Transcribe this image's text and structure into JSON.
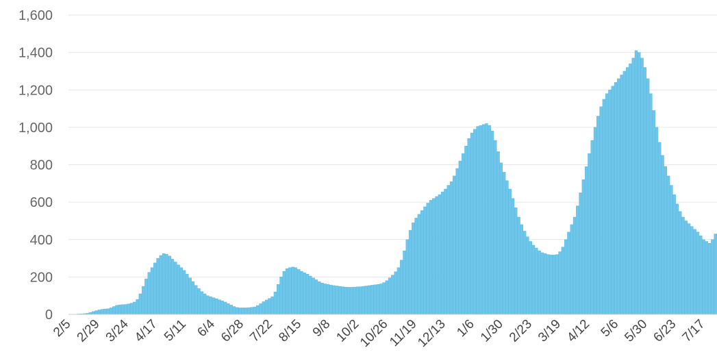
{
  "chart_data": {
    "type": "bar",
    "title": "",
    "xlabel": "",
    "ylabel": "",
    "ylim": [
      0,
      1600
    ],
    "yticks": [
      "0",
      "200",
      "400",
      "600",
      "800",
      "1,000",
      "1,200",
      "1,400",
      "1,600"
    ],
    "xticks": [
      "2/5",
      "2/29",
      "3/24",
      "4/17",
      "5/11",
      "6/4",
      "6/28",
      "7/22",
      "8/15",
      "9/8",
      "10/2",
      "10/26",
      "11/19",
      "12/13",
      "1/6",
      "1/30",
      "2/23",
      "3/19",
      "4/12",
      "5/6",
      "5/30",
      "6/23",
      "7/17"
    ],
    "grid": true,
    "colors": {
      "bar": "#6ec6ea",
      "bar_edge": "#4fb3de",
      "grid": "#e6e6e6"
    },
    "series": [
      {
        "values": [
          0,
          0,
          1,
          2,
          3,
          4,
          6,
          10,
          15,
          20,
          24,
          27,
          29,
          30,
          35,
          42,
          48,
          51,
          52,
          53,
          56,
          60,
          66,
          80,
          110,
          150,
          190,
          225,
          250,
          275,
          300,
          315,
          325,
          322,
          312,
          295,
          280,
          265,
          250,
          235,
          215,
          195,
          175,
          155,
          138,
          122,
          110,
          100,
          94,
          89,
          84,
          78,
          72,
          66,
          58,
          50,
          42,
          37,
          35,
          35,
          35,
          36,
          38,
          40,
          47,
          57,
          68,
          77,
          85,
          95,
          120,
          160,
          200,
          230,
          245,
          250,
          253,
          250,
          240,
          230,
          222,
          215,
          205,
          195,
          185,
          175,
          168,
          163,
          160,
          157,
          154,
          152,
          150,
          148,
          146,
          145,
          145,
          146,
          147,
          148,
          150,
          152,
          154,
          156,
          158,
          160,
          163,
          170,
          180,
          195,
          210,
          228,
          250,
          290,
          340,
          400,
          450,
          490,
          515,
          535,
          555,
          575,
          595,
          610,
          620,
          630,
          640,
          655,
          670,
          690,
          710,
          740,
          780,
          820,
          860,
          900,
          940,
          970,
          990,
          1005,
          1010,
          1015,
          1020,
          1010,
          980,
          930,
          870,
          810,
          760,
          715,
          670,
          620,
          570,
          520,
          480,
          445,
          415,
          390,
          370,
          355,
          340,
          330,
          325,
          320,
          318,
          318,
          320,
          335,
          360,
          400,
          440,
          480,
          520,
          580,
          650,
          720,
          790,
          860,
          930,
          1000,
          1060,
          1110,
          1150,
          1180,
          1200,
          1220,
          1240,
          1260,
          1280,
          1300,
          1320,
          1340,
          1370,
          1410,
          1400,
          1370,
          1320,
          1260,
          1180,
          1090,
          1000,
          920,
          850,
          790,
          740,
          690,
          640,
          590,
          550,
          520,
          500,
          485,
          470,
          455,
          440,
          420,
          400,
          390,
          380,
          400,
          430
        ]
      }
    ]
  }
}
